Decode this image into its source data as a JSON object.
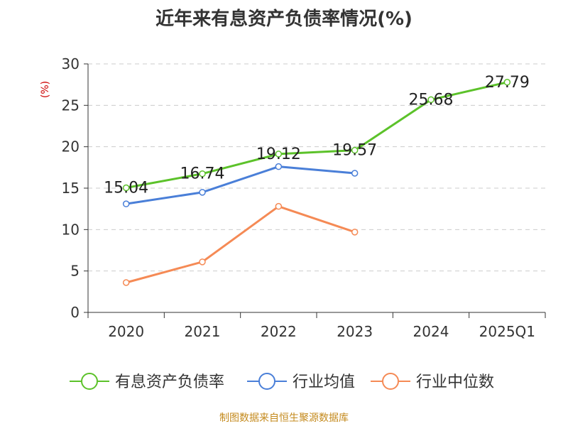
{
  "chart_data": {
    "type": "line",
    "title": "近年来有息资产负债率情况(%)",
    "ylabel": "(%)",
    "xlabel": "",
    "ylim": [
      0,
      30
    ],
    "yticks": [
      0,
      5,
      10,
      15,
      20,
      25,
      30
    ],
    "categories": [
      "2020",
      "2021",
      "2022",
      "2023",
      "2024",
      "2025Q1"
    ],
    "grid": true,
    "legend_position": "bottom",
    "series": [
      {
        "name": "有息资产负债率",
        "color": "#5cc22a",
        "values": [
          15.04,
          16.74,
          19.12,
          19.57,
          25.68,
          27.79
        ],
        "labels": [
          "15.04",
          "16.74",
          "19.12",
          "19.57",
          "25.68",
          "27.79"
        ]
      },
      {
        "name": "行业均值",
        "color": "#4a7fd8",
        "values": [
          13.1,
          14.5,
          17.6,
          16.8,
          null,
          null
        ]
      },
      {
        "name": "行业中位数",
        "color": "#f58a55",
        "values": [
          3.6,
          6.1,
          12.8,
          9.7,
          null,
          null
        ]
      }
    ]
  },
  "footer": "制图数据来自恒生聚源数据库"
}
